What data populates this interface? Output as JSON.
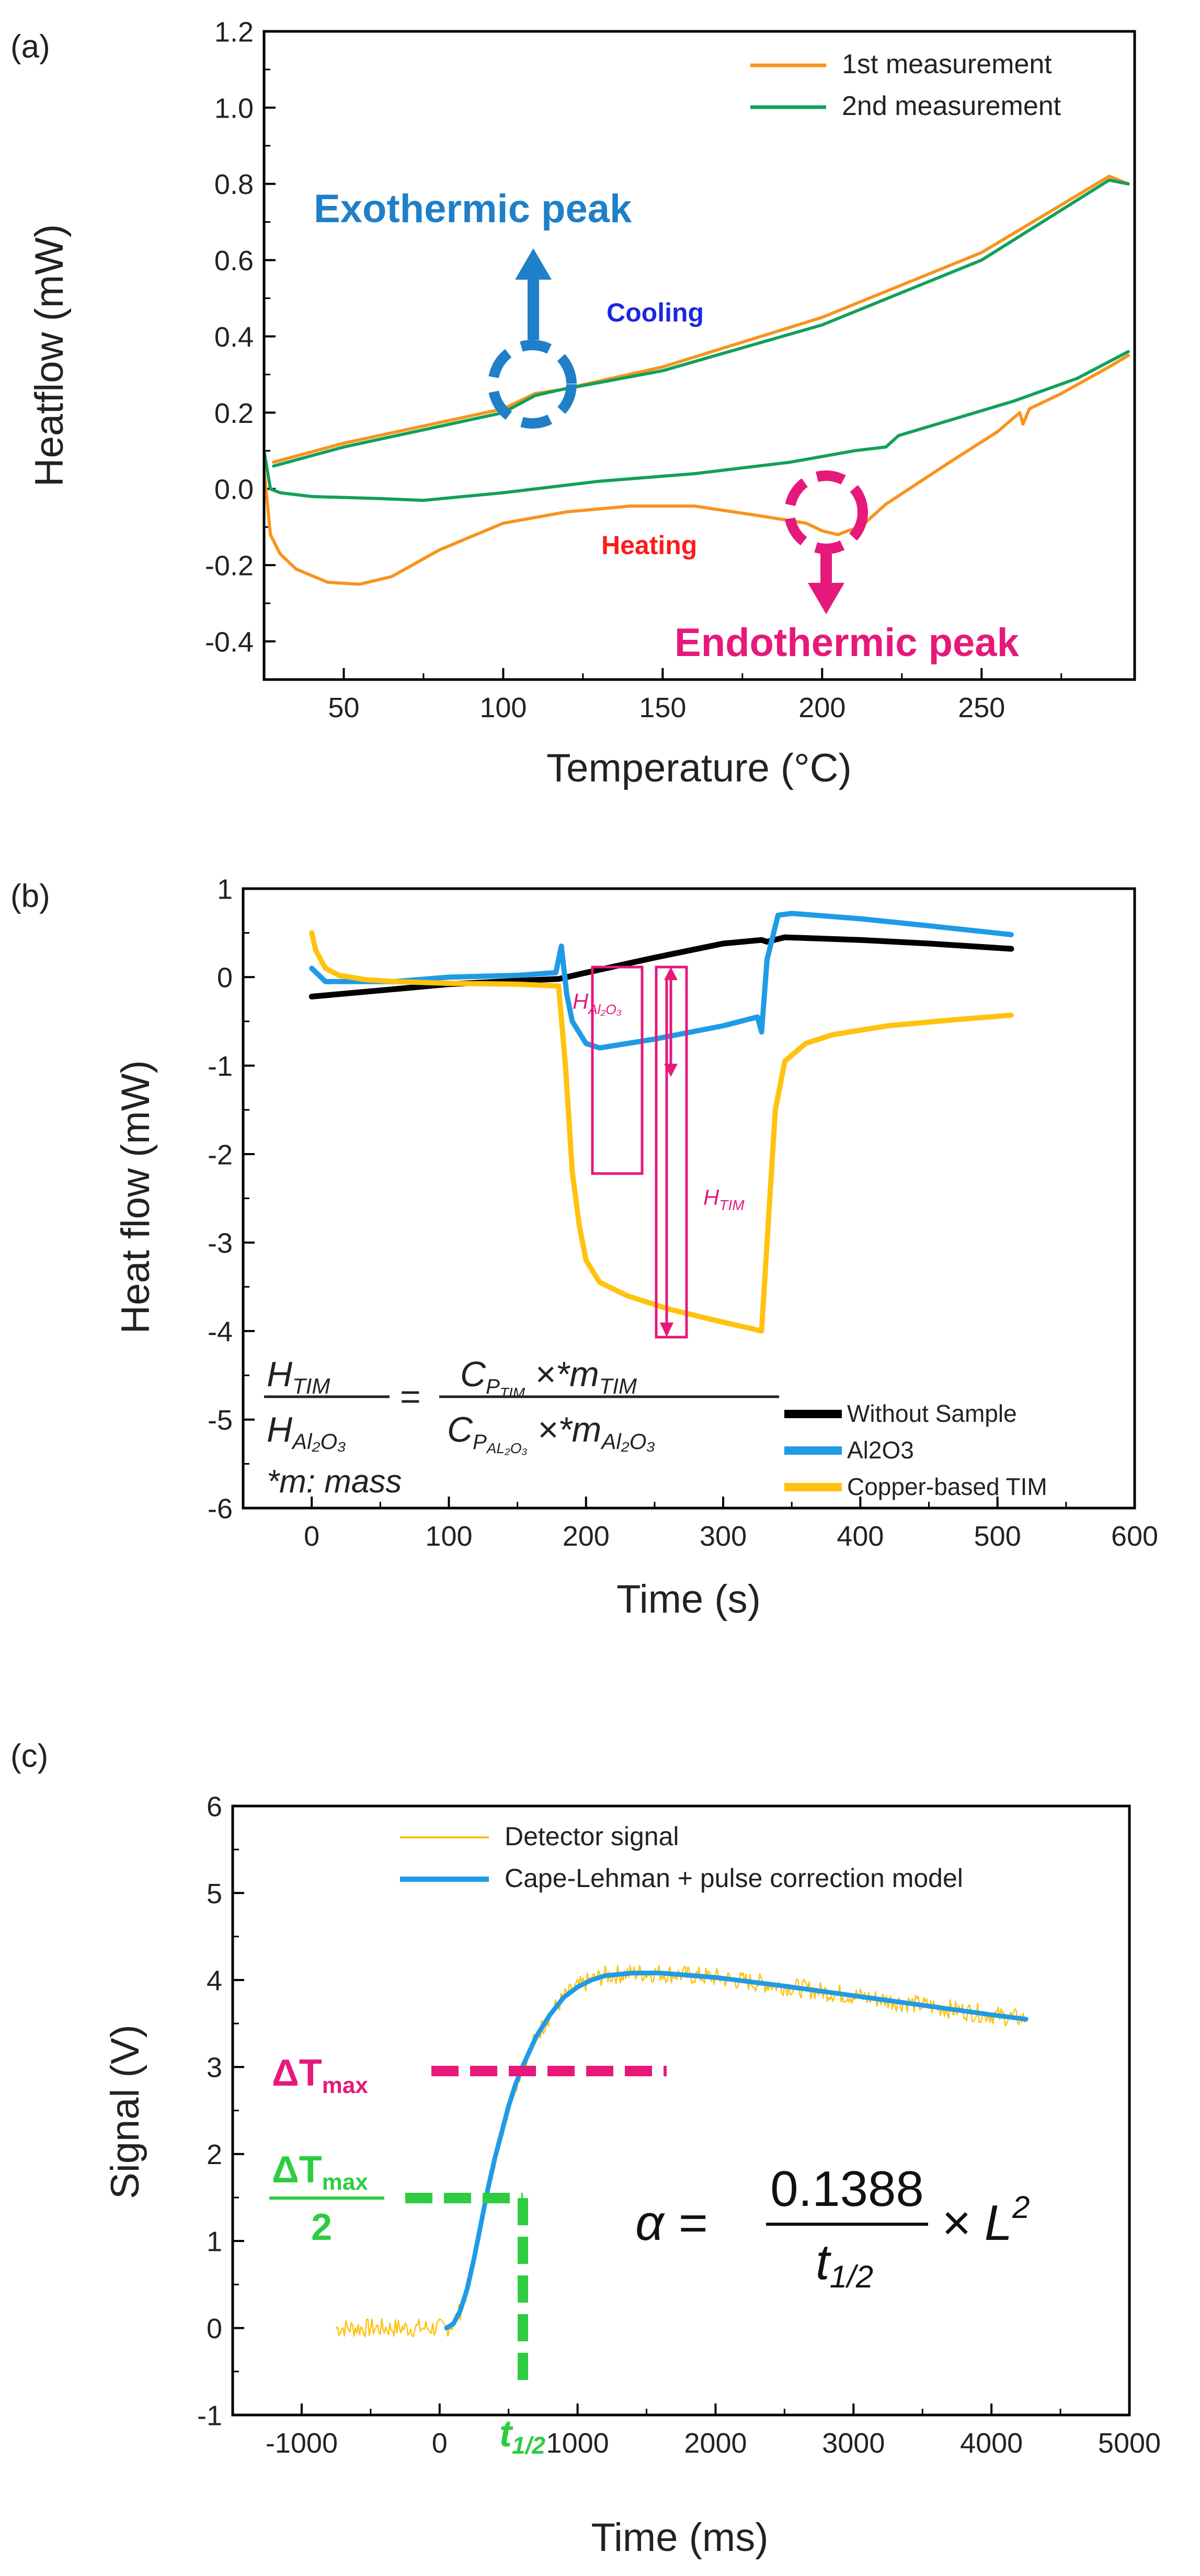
{
  "colors": {
    "orange": "#F7941D",
    "green": "#12A05A",
    "blue": "#1F9BE6",
    "yellow": "#FFC20E",
    "black": "#000000",
    "pink": "#E6197A",
    "exoBlue": "#1F7FC8",
    "cool": "#1A27E0",
    "heat": "#FF1A1A",
    "brightGreen": "#2ECC40"
  },
  "chart_data": [
    {
      "panel": "(a)",
      "type": "line",
      "xlabel": "Temperature (°C)",
      "ylabel": "Heatflow (mW)",
      "xlim": [
        25,
        298
      ],
      "ylim": [
        -0.5,
        1.2
      ],
      "xticks": [
        "50",
        "100",
        "150",
        "200",
        "250"
      ],
      "xtick_values": [
        50,
        100,
        150,
        200,
        250
      ],
      "yticks": [
        "-0.4",
        "-0.2",
        "0.0",
        "0.2",
        "0.4",
        "0.6",
        "0.8",
        "1.0",
        "1.2"
      ],
      "ytick_values": [
        -0.4,
        -0.2,
        0.0,
        0.2,
        0.4,
        0.6,
        0.8,
        1.0,
        1.2
      ],
      "legend": [
        "1st measurement",
        "2nd measurement"
      ],
      "series": [
        {
          "name": "1st measurement",
          "color": "orange",
          "x": [
            25,
            27,
            30,
            35,
            45,
            55,
            65,
            80,
            100,
            120,
            140,
            160,
            180,
            195,
            200,
            205,
            208,
            212,
            220,
            240,
            255,
            262,
            263,
            265,
            275,
            290,
            296
          ],
          "y": [
            0.05,
            -0.12,
            -0.17,
            -0.21,
            -0.245,
            -0.25,
            -0.23,
            -0.16,
            -0.09,
            -0.06,
            -0.045,
            -0.045,
            -0.07,
            -0.09,
            -0.11,
            -0.12,
            -0.11,
            -0.1,
            -0.04,
            0.07,
            0.15,
            0.2,
            0.17,
            0.21,
            0.25,
            0.32,
            0.35
          ]
        },
        {
          "name": "1st measurement (cooling)",
          "color": "orange",
          "x": [
            296,
            290,
            250,
            200,
            150,
            118,
            110,
            100,
            50,
            28
          ],
          "y": [
            0.8,
            0.82,
            0.62,
            0.45,
            0.32,
            0.26,
            0.25,
            0.21,
            0.12,
            0.07
          ]
        },
        {
          "name": "2nd measurement",
          "color": "green",
          "x": [
            25,
            27,
            30,
            40,
            60,
            75,
            100,
            130,
            160,
            190,
            210,
            220,
            224,
            240,
            260,
            280,
            296
          ],
          "y": [
            0.1,
            0.0,
            -0.01,
            -0.02,
            -0.025,
            -0.03,
            -0.01,
            0.02,
            0.04,
            0.07,
            0.1,
            0.11,
            0.14,
            0.18,
            0.23,
            0.29,
            0.36
          ]
        },
        {
          "name": "2nd measurement (cooling)",
          "color": "green",
          "x": [
            296,
            290,
            250,
            200,
            150,
            118,
            110,
            100,
            50,
            28
          ],
          "y": [
            0.8,
            0.81,
            0.6,
            0.43,
            0.31,
            0.26,
            0.245,
            0.2,
            0.11,
            0.06
          ]
        }
      ],
      "annotations": {
        "exo": "Exothermic peak",
        "endo": "Endothermic peak",
        "cooling": "Cooling",
        "heating": "Heating"
      }
    },
    {
      "panel": "(b)",
      "type": "line",
      "xlabel": "Time (s)",
      "ylabel": "Heat flow (mW)",
      "xlim": [
        -50,
        600
      ],
      "ylim": [
        -6,
        1
      ],
      "xticks": [
        "0",
        "100",
        "200",
        "300",
        "400",
        "500",
        "600"
      ],
      "xtick_values": [
        0,
        100,
        200,
        300,
        400,
        500,
        600
      ],
      "yticks": [
        "-6",
        "-5",
        "-4",
        "-3",
        "-2",
        "-1",
        "0",
        "1"
      ],
      "ytick_values": [
        -6,
        -5,
        -4,
        -3,
        -2,
        -1,
        0,
        1
      ],
      "legend": [
        "Without Sample",
        "Al2O3",
        "Copper-based TIM"
      ],
      "series": [
        {
          "name": "Without Sample",
          "color": "black",
          "x": [
            0,
            50,
            100,
            150,
            180,
            200,
            250,
            300,
            328,
            332,
            345,
            400,
            450,
            510
          ],
          "y": [
            -0.22,
            -0.15,
            -0.08,
            -0.04,
            -0.02,
            0.05,
            0.22,
            0.38,
            0.42,
            0.4,
            0.45,
            0.42,
            0.38,
            0.32
          ]
        },
        {
          "name": "Al2O3",
          "color": "blue",
          "x": [
            0,
            10,
            30,
            60,
            100,
            150,
            178,
            182,
            186,
            190,
            200,
            210,
            250,
            300,
            325,
            328,
            332,
            340,
            350,
            400,
            450,
            510
          ],
          "y": [
            0.1,
            -0.05,
            -0.05,
            -0.05,
            0.0,
            0.02,
            0.05,
            0.35,
            -0.2,
            -0.5,
            -0.75,
            -0.8,
            -0.7,
            -0.55,
            -0.45,
            -0.62,
            0.2,
            0.7,
            0.72,
            0.66,
            0.58,
            0.48
          ]
        },
        {
          "name": "Copper-based TIM",
          "color": "yellow",
          "x": [
            0,
            3,
            10,
            20,
            40,
            60,
            100,
            150,
            180,
            185,
            190,
            195,
            200,
            210,
            230,
            260,
            300,
            320,
            328,
            332,
            338,
            345,
            360,
            380,
            420,
            470,
            510
          ],
          "y": [
            0.5,
            0.3,
            0.1,
            0.02,
            -0.03,
            -0.05,
            -0.07,
            -0.08,
            -0.1,
            -1.0,
            -2.2,
            -2.8,
            -3.2,
            -3.45,
            -3.6,
            -3.75,
            -3.9,
            -3.97,
            -4.0,
            -3.0,
            -1.5,
            -0.95,
            -0.75,
            -0.65,
            -0.55,
            -0.48,
            -0.43
          ]
        }
      ],
      "annotations": {
        "h_al_main": "H",
        "h_al_sub": "Al₂O₃",
        "h_tim_main": "H",
        "h_tim_sub": "TIM",
        "eq_lhs_num": "H",
        "eq_lhs_num_sub": "TIM",
        "eq_lhs_den": "H",
        "eq_lhs_den_sub": "Al₂O₃",
        "eq_equals": "=",
        "eq_rhs_num_c": "C",
        "eq_rhs_num_csub": "P",
        "eq_rhs_num_csubsub": "TIM",
        "eq_rhs_num_rest": " ×*m",
        "eq_rhs_num_msub": "TIM",
        "eq_rhs_den_c": "C",
        "eq_rhs_den_csub": "P",
        "eq_rhs_den_csubsub": "AL₂O₃",
        "eq_rhs_den_rest": " ×*m",
        "eq_rhs_den_msub": "Al₂O₃",
        "mass_note": "*m: mass"
      }
    },
    {
      "panel": "(c)",
      "type": "line",
      "xlabel": "Time (ms)",
      "ylabel": "Signal (V)",
      "xlim": [
        -1500,
        5000
      ],
      "ylim": [
        -1,
        6
      ],
      "xticks": [
        "-1000",
        "0",
        "1000",
        "2000",
        "3000",
        "4000",
        "5000"
      ],
      "xtick_values": [
        -1000,
        0,
        1000,
        2000,
        3000,
        4000,
        5000
      ],
      "yticks": [
        "-1",
        "0",
        "1",
        "2",
        "3",
        "4",
        "5",
        "6"
      ],
      "ytick_values": [
        -1,
        0,
        1,
        2,
        3,
        4,
        5,
        6
      ],
      "legend": [
        "Detector signal",
        "Cape-Lehman + pulse correction model"
      ],
      "series": [
        {
          "name": "Cape-Lehman + pulse correction model",
          "color": "blue",
          "x": [
            50,
            100,
            150,
            200,
            250,
            300,
            350,
            400,
            450,
            500,
            550,
            600,
            700,
            800,
            900,
            1000,
            1100,
            1200,
            1400,
            1600,
            2000,
            2500,
            3000,
            3500,
            4000,
            4250
          ],
          "y": [
            0.0,
            0.05,
            0.2,
            0.45,
            0.8,
            1.2,
            1.6,
            1.95,
            2.25,
            2.55,
            2.8,
            3.0,
            3.35,
            3.6,
            3.8,
            3.92,
            4.0,
            4.05,
            4.08,
            4.08,
            4.03,
            3.93,
            3.82,
            3.71,
            3.6,
            3.55
          ]
        },
        {
          "name": "Detector signal",
          "color": "yellow",
          "x": [
            -750,
            4250
          ],
          "y_model": "noisy data following the model; ~0 before 0 ms"
        }
      ],
      "annotations": {
        "dt_max": "ΔT",
        "dt_max_sub": "max",
        "dt_half_num": "ΔT",
        "dt_half_num_sub": "max",
        "dt_half_den": "2",
        "t_half": "t",
        "t_half_sub": "1/2",
        "alpha_lhs": "α =",
        "alpha_num": "0.1388",
        "alpha_den": "t",
        "alpha_den_sub": "1/2",
        "alpha_rhs": "× L",
        "alpha_rhs_sup": "2"
      }
    }
  ],
  "panel_labels": [
    "(a)",
    "(b)",
    "(c)"
  ]
}
